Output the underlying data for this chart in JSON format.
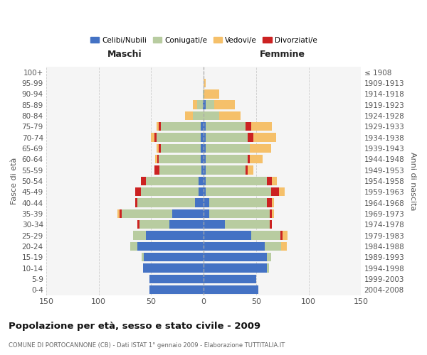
{
  "age_groups": [
    "0-4",
    "5-9",
    "10-14",
    "15-19",
    "20-24",
    "25-29",
    "30-34",
    "35-39",
    "40-44",
    "45-49",
    "50-54",
    "55-59",
    "60-64",
    "65-69",
    "70-74",
    "75-79",
    "80-84",
    "85-89",
    "90-94",
    "95-99",
    "100+"
  ],
  "birth_years": [
    "2004-2008",
    "1999-2003",
    "1994-1998",
    "1989-1993",
    "1984-1988",
    "1979-1983",
    "1974-1978",
    "1969-1973",
    "1964-1968",
    "1959-1963",
    "1954-1958",
    "1949-1953",
    "1944-1948",
    "1939-1943",
    "1934-1938",
    "1929-1933",
    "1924-1928",
    "1919-1923",
    "1914-1918",
    "1909-1913",
    "≤ 1908"
  ],
  "maschi_celibi": [
    52,
    52,
    58,
    57,
    63,
    55,
    33,
    30,
    8,
    5,
    5,
    2,
    3,
    3,
    3,
    3,
    0,
    1,
    0,
    0,
    0
  ],
  "maschi_coniugati": [
    0,
    0,
    0,
    2,
    7,
    12,
    28,
    48,
    55,
    55,
    50,
    40,
    40,
    38,
    42,
    38,
    10,
    5,
    1,
    0,
    0
  ],
  "maschi_vedovi": [
    0,
    0,
    0,
    0,
    0,
    0,
    0,
    2,
    0,
    0,
    0,
    0,
    2,
    2,
    3,
    2,
    8,
    4,
    0,
    0,
    0
  ],
  "maschi_divorziati": [
    0,
    0,
    0,
    0,
    0,
    0,
    2,
    2,
    2,
    5,
    5,
    5,
    1,
    2,
    2,
    2,
    0,
    0,
    0,
    0,
    0
  ],
  "femmine_nubili": [
    52,
    50,
    60,
    60,
    58,
    45,
    20,
    5,
    5,
    2,
    2,
    2,
    2,
    2,
    2,
    2,
    0,
    2,
    0,
    0,
    0
  ],
  "femmine_coniugate": [
    0,
    0,
    2,
    4,
    16,
    28,
    43,
    58,
    55,
    62,
    58,
    38,
    40,
    42,
    40,
    38,
    15,
    8,
    0,
    0,
    0
  ],
  "femmine_vedove": [
    0,
    0,
    0,
    0,
    5,
    5,
    0,
    2,
    2,
    5,
    5,
    5,
    12,
    20,
    22,
    20,
    20,
    20,
    15,
    2,
    0
  ],
  "femmine_divorziate": [
    0,
    0,
    0,
    0,
    0,
    2,
    2,
    2,
    5,
    8,
    5,
    2,
    2,
    0,
    5,
    5,
    0,
    0,
    0,
    0,
    0
  ],
  "color_celibi": "#4472c4",
  "color_coniugati": "#b8cca0",
  "color_vedovi": "#f5c06a",
  "color_divorziati": "#cc2222",
  "xlim": 150,
  "title": "Popolazione per età, sesso e stato civile - 2009",
  "subtitle": "COMUNE DI PORTOCANNONE (CB) - Dati ISTAT 1° gennaio 2009 - Elaborazione TUTTITALIA.IT",
  "label_maschi": "Maschi",
  "label_femmine": "Femmine",
  "ylabel_left": "Fasce di età",
  "ylabel_right": "Anni di nascita",
  "legend_labels": [
    "Celibi/Nubili",
    "Coniugati/e",
    "Vedovi/e",
    "Divorziati/e"
  ]
}
